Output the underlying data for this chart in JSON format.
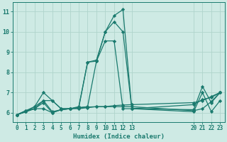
{
  "xlabel": "Humidex (Indice chaleur)",
  "bg_color": "#ceeae4",
  "line_color": "#1a7a6e",
  "grid_color": "#afd4cc",
  "series": [
    {
      "x": [
        0,
        1,
        2,
        3,
        4,
        5,
        6,
        7,
        8,
        9,
        10,
        11,
        12,
        13,
        20,
        21,
        22,
        23
      ],
      "y": [
        5.9,
        6.1,
        6.3,
        7.0,
        6.6,
        6.2,
        6.2,
        6.2,
        6.25,
        6.3,
        6.3,
        6.3,
        6.3,
        6.3,
        6.1,
        6.2,
        6.55,
        7.0
      ]
    },
    {
      "x": [
        0,
        1,
        2,
        3,
        4,
        5,
        6,
        7,
        8,
        9,
        10,
        11,
        12,
        13,
        20,
        21,
        22,
        23
      ],
      "y": [
        5.9,
        6.05,
        6.2,
        6.6,
        6.05,
        6.15,
        6.2,
        6.25,
        8.5,
        8.6,
        10.0,
        10.5,
        10.0,
        6.2,
        6.15,
        7.3,
        6.5,
        7.0
      ]
    },
    {
      "x": [
        0,
        1,
        2,
        3,
        4,
        5,
        6,
        7,
        8,
        9,
        10,
        11,
        12,
        13,
        20,
        21,
        22,
        23
      ],
      "y": [
        5.9,
        6.05,
        6.2,
        6.2,
        6.0,
        6.15,
        6.2,
        6.3,
        8.5,
        8.55,
        10.0,
        10.8,
        11.1,
        6.2,
        6.05,
        7.0,
        6.05,
        6.6
      ]
    },
    {
      "x": [
        0,
        1,
        2,
        3,
        4,
        5,
        6,
        7,
        8,
        9,
        10,
        11,
        12,
        13,
        20,
        21,
        22,
        23
      ],
      "y": [
        5.9,
        6.05,
        6.3,
        6.6,
        6.6,
        6.2,
        6.2,
        6.25,
        6.3,
        8.55,
        9.55,
        9.55,
        6.2,
        6.2,
        6.4,
        6.65,
        6.75,
        7.0
      ]
    },
    {
      "x": [
        0,
        1,
        2,
        3,
        4,
        5,
        6,
        7,
        8,
        9,
        10,
        11,
        12,
        13,
        20,
        21,
        22,
        23
      ],
      "y": [
        5.9,
        6.1,
        6.2,
        6.5,
        6.0,
        6.15,
        6.2,
        6.25,
        6.28,
        6.3,
        6.3,
        6.35,
        6.38,
        6.4,
        6.5,
        6.6,
        6.8,
        7.0
      ]
    }
  ],
  "xtick_positions": [
    0,
    1,
    2,
    3,
    4,
    5,
    6,
    7,
    8,
    9,
    10,
    11,
    12,
    13,
    20,
    21,
    22,
    23
  ],
  "xtick_labels": [
    "0",
    "1",
    "2",
    "3",
    "4",
    "5",
    "6",
    "7",
    "8",
    "9",
    "10",
    "11",
    "12",
    "13",
    "20",
    "21",
    "22",
    "23"
  ],
  "ytick_positions": [
    6,
    7,
    8,
    9,
    10,
    11
  ],
  "ytick_labels": [
    "6",
    "7",
    "8",
    "9",
    "10",
    "11"
  ],
  "xlim": [
    -0.5,
    23.5
  ],
  "ylim": [
    5.55,
    11.45
  ],
  "marker": "D",
  "markersize": 2.2,
  "linewidth": 0.9
}
